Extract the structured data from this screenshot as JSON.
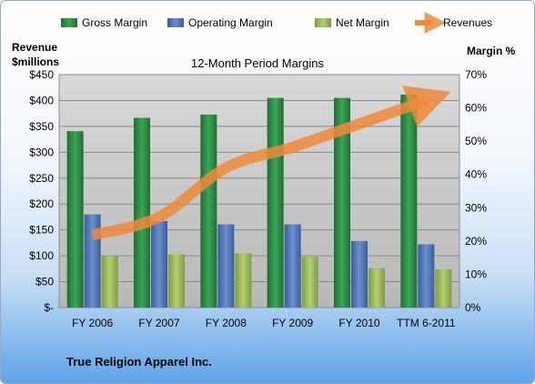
{
  "chart_data": {
    "type": "bar",
    "title": "12-Month Period Margins",
    "categories": [
      "FY 2006",
      "FY 2007",
      "FY 2008",
      "FY 2009",
      "FY 2010",
      "TTM 6-2011"
    ],
    "series": [
      {
        "name": "Gross Margin",
        "axis": "right",
        "values": [
          53,
          57,
          58,
          63,
          63,
          64
        ]
      },
      {
        "name": "Operating Margin",
        "axis": "right",
        "values": [
          28,
          26,
          25,
          25,
          20,
          19
        ]
      },
      {
        "name": "Net Margin",
        "axis": "right",
        "values": [
          15.5,
          16,
          16.3,
          15.2,
          11.8,
          11.5
        ]
      },
      {
        "name": "Revenues",
        "axis": "left",
        "type": "line",
        "values": [
          140,
          175,
          270,
          310,
          355,
          400
        ]
      }
    ],
    "y_left": {
      "label_line1": "Revenue",
      "label_line2": "$millions",
      "range": [
        0,
        450
      ],
      "ticks": [
        "$-",
        "$50",
        "$100",
        "$150",
        "$200",
        "$250",
        "$300",
        "$350",
        "$400",
        "$450"
      ]
    },
    "y_right": {
      "label": "Margin %",
      "range": [
        0,
        70
      ],
      "ticks": [
        "0%",
        "10%",
        "20%",
        "30%",
        "40%",
        "50%",
        "60%",
        "70%"
      ]
    },
    "grid": true,
    "legend_position": "top",
    "colors": {
      "gross": "#2e8b45",
      "operating": "#4f75b8",
      "net": "#9bbb59",
      "revenue": "#ee8a3a"
    }
  },
  "footer": {
    "company": "True Religion Apparel Inc."
  }
}
